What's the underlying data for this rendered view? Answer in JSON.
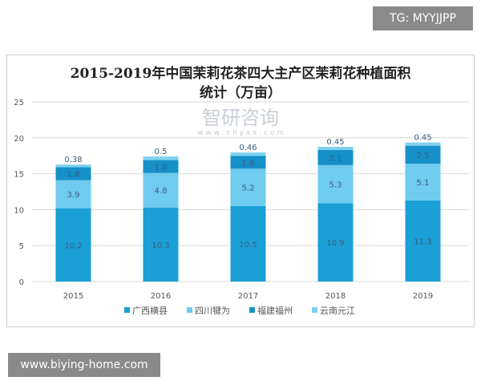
{
  "overlay": {
    "top_right_tag": "TG: MYYJJPP",
    "bottom_left_tag": "www.biying-home.com"
  },
  "watermark": {
    "name": "智研咨询",
    "url": "w w w . c h y x x . c o m"
  },
  "chart_data": {
    "type": "bar",
    "stacked": true,
    "title_line1": "2015-2019年中国茉莉花茶四大主产区茉莉花种植面积",
    "title_line2": "统计（万亩）",
    "categories": [
      "2015",
      "2016",
      "2017",
      "2018",
      "2019"
    ],
    "series": [
      {
        "name": "广西横县",
        "values": [
          10.2,
          10.3,
          10.5,
          10.9,
          11.3
        ],
        "color": "#1a9fd6"
      },
      {
        "name": "四川犍为",
        "values": [
          3.9,
          4.8,
          5.2,
          5.3,
          5.1
        ],
        "color": "#6fcbef"
      },
      {
        "name": "福建福州",
        "values": [
          1.8,
          1.8,
          1.8,
          2.1,
          2.5
        ],
        "color": "#1590c8"
      },
      {
        "name": "云南元江",
        "values": [
          0.38,
          0.5,
          0.46,
          0.45,
          0.45
        ],
        "color": "#80d0ef"
      }
    ],
    "yticks": [
      0,
      5,
      10,
      15,
      20,
      25
    ],
    "ylim": [
      0,
      25
    ],
    "grid": true,
    "legend_position": "bottom"
  }
}
